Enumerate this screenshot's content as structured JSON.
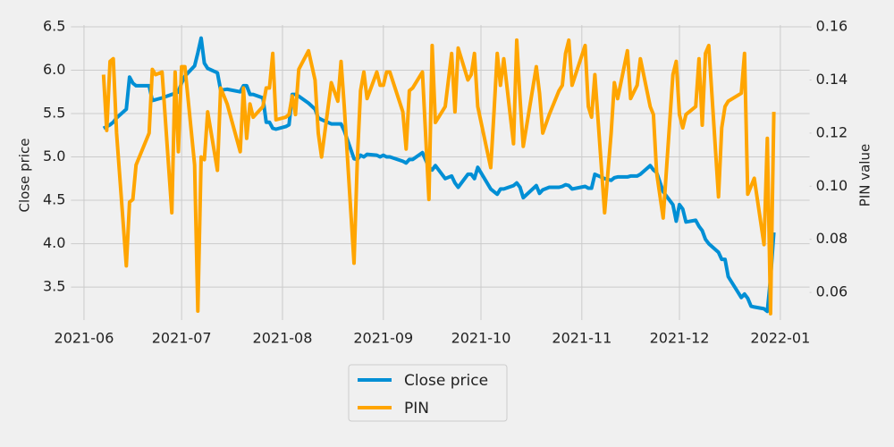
{
  "chart_data": {
    "type": "line",
    "x": [
      "2021-06-07",
      "2021-06-08",
      "2021-06-09",
      "2021-06-10",
      "2021-06-11",
      "2021-06-14",
      "2021-06-15",
      "2021-06-16",
      "2021-06-17",
      "2021-06-21",
      "2021-06-22",
      "2021-06-23",
      "2021-06-25",
      "2021-06-28",
      "2021-06-29",
      "2021-06-30",
      "2021-07-01",
      "2021-07-02",
      "2021-07-05",
      "2021-07-06",
      "2021-07-07",
      "2021-07-08",
      "2021-07-09",
      "2021-07-12",
      "2021-07-13",
      "2021-07-15",
      "2021-07-19",
      "2021-07-20",
      "2021-07-21",
      "2021-07-22",
      "2021-07-23",
      "2021-07-26",
      "2021-07-27",
      "2021-07-28",
      "2021-07-29",
      "2021-07-30",
      "2021-08-02",
      "2021-08-03",
      "2021-08-04",
      "2021-08-05",
      "2021-08-06",
      "2021-08-09",
      "2021-08-11",
      "2021-08-12",
      "2021-08-13",
      "2021-08-16",
      "2021-08-18",
      "2021-08-19",
      "2021-08-20",
      "2021-08-23",
      "2021-08-24",
      "2021-08-25",
      "2021-08-26",
      "2021-08-27",
      "2021-08-30",
      "2021-08-31",
      "2021-09-01",
      "2021-09-02",
      "2021-09-03",
      "2021-09-07",
      "2021-09-08",
      "2021-09-09",
      "2021-09-10",
      "2021-09-13",
      "2021-09-15",
      "2021-09-16",
      "2021-09-17",
      "2021-09-20",
      "2021-09-22",
      "2021-09-23",
      "2021-09-24",
      "2021-09-27",
      "2021-09-28",
      "2021-09-29",
      "2021-09-30",
      "2021-10-04",
      "2021-10-05",
      "2021-10-06",
      "2021-10-07",
      "2021-10-08",
      "2021-10-11",
      "2021-10-12",
      "2021-10-13",
      "2021-10-14",
      "2021-10-18",
      "2021-10-19",
      "2021-10-20",
      "2021-10-22",
      "2021-10-25",
      "2021-10-26",
      "2021-10-27",
      "2021-10-28",
      "2021-10-29",
      "2021-11-02",
      "2021-11-03",
      "2021-11-04",
      "2021-11-05",
      "2021-11-08",
      "2021-11-10",
      "2021-11-11",
      "2021-11-12",
      "2021-11-15",
      "2021-11-16",
      "2021-11-18",
      "2021-11-19",
      "2021-11-22",
      "2021-11-23",
      "2021-11-24",
      "2021-11-26",
      "2021-11-29",
      "2021-11-30",
      "2021-12-01",
      "2021-12-02",
      "2021-12-03",
      "2021-12-06",
      "2021-12-07",
      "2021-12-08",
      "2021-12-09",
      "2021-12-10",
      "2021-12-13",
      "2021-12-14",
      "2021-12-15",
      "2021-12-16",
      "2021-12-20",
      "2021-12-21",
      "2021-12-22",
      "2021-12-23",
      "2021-12-24",
      "2021-12-27",
      "2021-12-28",
      "2021-12-29",
      "2021-12-30"
    ],
    "series": [
      {
        "name": "Close price",
        "color": "#008fd5",
        "values": [
          5.33,
          5.35,
          5.37,
          5.4,
          5.45,
          5.55,
          5.92,
          5.85,
          5.82,
          5.82,
          5.65,
          5.66,
          5.68,
          5.72,
          5.73,
          5.75,
          5.85,
          5.93,
          6.05,
          6.2,
          6.37,
          6.08,
          6.02,
          5.97,
          5.77,
          5.78,
          5.75,
          5.82,
          5.82,
          5.72,
          5.72,
          5.68,
          5.4,
          5.4,
          5.33,
          5.32,
          5.35,
          5.37,
          5.72,
          5.72,
          5.7,
          5.62,
          5.55,
          5.45,
          5.43,
          5.38,
          5.38,
          5.38,
          5.3,
          4.98,
          4.97,
          5.02,
          5.0,
          5.03,
          5.02,
          5.0,
          5.02,
          5.0,
          5.0,
          4.95,
          4.93,
          4.97,
          4.97,
          5.05,
          4.88,
          4.85,
          4.9,
          4.75,
          4.78,
          4.7,
          4.65,
          4.8,
          4.8,
          4.75,
          4.88,
          4.63,
          4.6,
          4.57,
          4.63,
          4.63,
          4.67,
          4.7,
          4.65,
          4.53,
          4.67,
          4.58,
          4.62,
          4.65,
          4.65,
          4.66,
          4.68,
          4.67,
          4.63,
          4.66,
          4.64,
          4.64,
          4.8,
          4.75,
          4.73,
          4.76,
          4.77,
          4.77,
          4.78,
          4.78,
          4.8,
          4.9,
          4.85,
          4.82,
          4.6,
          4.45,
          4.26,
          4.45,
          4.4,
          4.25,
          4.27,
          4.2,
          4.15,
          4.05,
          4.0,
          3.9,
          3.82,
          3.82,
          3.62,
          3.38,
          3.42,
          3.37,
          3.28,
          3.27,
          3.25,
          3.22,
          3.6,
          4.13
        ]
      },
      {
        "name": "PIN",
        "color": "#ffa500",
        "axis": "y2",
        "values": [
          0.142,
          0.121,
          0.147,
          0.148,
          0.12,
          0.07,
          0.094,
          0.095,
          0.108,
          0.12,
          0.144,
          0.142,
          0.143,
          0.09,
          0.143,
          0.113,
          0.145,
          0.145,
          0.108,
          0.053,
          0.111,
          0.11,
          0.128,
          0.106,
          0.137,
          0.131,
          0.113,
          0.137,
          0.118,
          0.131,
          0.126,
          0.13,
          0.137,
          0.137,
          0.15,
          0.125,
          0.126,
          0.127,
          0.134,
          0.127,
          0.144,
          0.151,
          0.14,
          0.12,
          0.111,
          0.139,
          0.132,
          0.147,
          0.13,
          0.071,
          0.11,
          0.136,
          0.143,
          0.133,
          0.143,
          0.138,
          0.138,
          0.143,
          0.143,
          0.128,
          0.114,
          0.136,
          0.137,
          0.143,
          0.095,
          0.153,
          0.124,
          0.13,
          0.15,
          0.128,
          0.152,
          0.14,
          0.142,
          0.15,
          0.13,
          0.107,
          0.128,
          0.15,
          0.138,
          0.148,
          0.116,
          0.155,
          0.133,
          0.115,
          0.145,
          0.135,
          0.12,
          0.127,
          0.136,
          0.138,
          0.15,
          0.155,
          0.138,
          0.153,
          0.13,
          0.126,
          0.142,
          0.09,
          0.12,
          0.139,
          0.133,
          0.151,
          0.133,
          0.138,
          0.148,
          0.13,
          0.127,
          0.105,
          0.088,
          0.142,
          0.147,
          0.127,
          0.122,
          0.127,
          0.13,
          0.148,
          0.123,
          0.15,
          0.153,
          0.096,
          0.122,
          0.13,
          0.132,
          0.135,
          0.15,
          0.097,
          0.1,
          0.103,
          0.078,
          0.118,
          0.052,
          0.128
        ]
      }
    ],
    "ylabel": "Close price",
    "y2label": "PIN value",
    "xlim": [
      "2021-05-28",
      "2022-01-10"
    ],
    "xticks": [
      "2021-06",
      "2021-07",
      "2021-08",
      "2021-09",
      "2021-10",
      "2021-11",
      "2021-12",
      "2022-01"
    ],
    "ylim": [
      3.12,
      6.52
    ],
    "yticks": [
      3.5,
      {
        "value": 4,
        "label": "4.0"
      },
      4.5,
      {
        "value": 5,
        "label": "5.0"
      },
      5.5,
      {
        "value": 6,
        "label": "6.0"
      },
      6.5
    ],
    "y2lim": [
      0.0496,
      0.1607
    ],
    "y2ticks": [
      0.06,
      0.08,
      {
        "value": 0.1,
        "label": "0.10"
      },
      0.12,
      0.14,
      0.16
    ],
    "grid": true,
    "legend": "bottom"
  }
}
